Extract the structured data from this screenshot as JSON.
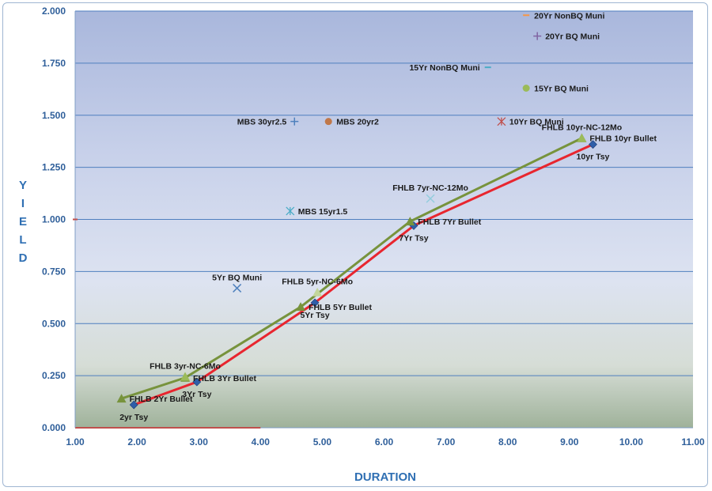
{
  "chart_data": {
    "type": "scatter",
    "title": "",
    "xlabel": "DURATION",
    "ylabel": "YIELD",
    "xlim": [
      1.0,
      11.0
    ],
    "ylim": [
      0.0,
      2.0
    ],
    "grid": true,
    "x_ticks": [
      "1.00",
      "2.00",
      "3.00",
      "4.00",
      "5.00",
      "6.00",
      "7.00",
      "8.00",
      "9.00",
      "10.00",
      "11.00"
    ],
    "y_ticks": [
      "0.000",
      "0.250",
      "0.500",
      "0.750",
      "1.000",
      "1.250",
      "1.500",
      "1.750",
      "2.000"
    ],
    "series": [
      {
        "type": "line",
        "color": "#e8262f",
        "marker": "diamond",
        "marker_color": "#2f5ea8",
        "points": [
          {
            "x": 1.95,
            "y": 0.11,
            "label": "2yr Tsy",
            "label_pos": "below"
          },
          {
            "x": 2.97,
            "y": 0.22,
            "label": "3Yr Tsy",
            "label_pos": "below"
          },
          {
            "x": 4.88,
            "y": 0.6,
            "label": "5Yr Tsy",
            "label_pos": "below"
          },
          {
            "x": 6.48,
            "y": 0.97,
            "label": "7Yr Tsy",
            "label_pos": "below"
          },
          {
            "x": 9.38,
            "y": 1.36,
            "label": "10yr Tsy",
            "label_pos": "below"
          }
        ]
      },
      {
        "type": "line",
        "color": "#77933c",
        "marker": "triangle",
        "marker_color": "#77933c",
        "points": [
          {
            "x": 1.75,
            "y": 0.14,
            "label": "FHLB 2Yr Bullet",
            "label_pos": "right"
          },
          {
            "x": 2.78,
            "y": 0.24,
            "label": "FHLB 3Yr Bullet",
            "label_pos": "right"
          },
          {
            "x": 4.65,
            "y": 0.58,
            "label": "FHLB 5Yr Bullet",
            "label_pos": "right"
          },
          {
            "x": 6.42,
            "y": 0.99,
            "label": "FHLB 7Yr Bullet",
            "label_pos": "right"
          },
          {
            "x": 9.2,
            "y": 1.39,
            "label": "FHLB 10yr Bullet",
            "label_pos": "right"
          }
        ]
      },
      {
        "type": "scatter",
        "points": [
          {
            "x": 2.78,
            "y": 0.245,
            "label": "FHLB 3yr-NC-6Mo",
            "marker": "triangle",
            "color": "#9bbb59",
            "label_pos": "above"
          },
          {
            "x": 4.92,
            "y": 0.65,
            "label": "FHLB 5yr-NC-6Mo",
            "marker": "triangle",
            "color": "#c3d69b",
            "label_pos": "above"
          },
          {
            "x": 6.75,
            "y": 1.1,
            "label": "FHLB 7yr-NC-12Mo",
            "marker": "x",
            "color": "#93cddd",
            "label_pos": "above"
          },
          {
            "x": 9.2,
            "y": 1.39,
            "label": "FHLB 10yr-NC-12Mo",
            "marker": "triangle",
            "color": "#9bbb59",
            "label_pos": "above"
          },
          {
            "x": 3.62,
            "y": 0.67,
            "label": "5Yr BQ Muni",
            "marker": "x",
            "color": "#4f81bd",
            "label_pos": "above"
          },
          {
            "x": 4.48,
            "y": 1.04,
            "label": "MBS 15yr1.5",
            "marker": "star",
            "color": "#4bacc6",
            "label_pos": "right"
          },
          {
            "x": 4.55,
            "y": 1.47,
            "label": "MBS 30yr2.5",
            "marker": "plus",
            "color": "#4f81bd",
            "label_pos": "left"
          },
          {
            "x": 5.1,
            "y": 1.47,
            "label": "MBS 20yr2",
            "marker": "circle",
            "color": "#c0784a",
            "label_pos": "right"
          },
          {
            "x": 7.9,
            "y": 1.47,
            "label": "10Yr BQ Muni",
            "marker": "star",
            "color": "#c0504d",
            "label_pos": "right"
          },
          {
            "x": 8.3,
            "y": 1.63,
            "label": "15Yr BQ Muni",
            "marker": "circle",
            "color": "#9bbb59",
            "label_pos": "right"
          },
          {
            "x": 7.68,
            "y": 1.73,
            "label": "15Yr NonBQ Muni",
            "marker": "dash",
            "color": "#4bacc6",
            "label_pos": "left"
          },
          {
            "x": 8.48,
            "y": 1.88,
            "label": "20Yr BQ Muni",
            "marker": "plus",
            "color": "#8064a2",
            "label_pos": "right"
          },
          {
            "x": 8.3,
            "y": 1.98,
            "label": "20Yr NonBQ Muni",
            "marker": "dash",
            "color": "#f79646",
            "label_pos": "right"
          }
        ]
      }
    ]
  }
}
